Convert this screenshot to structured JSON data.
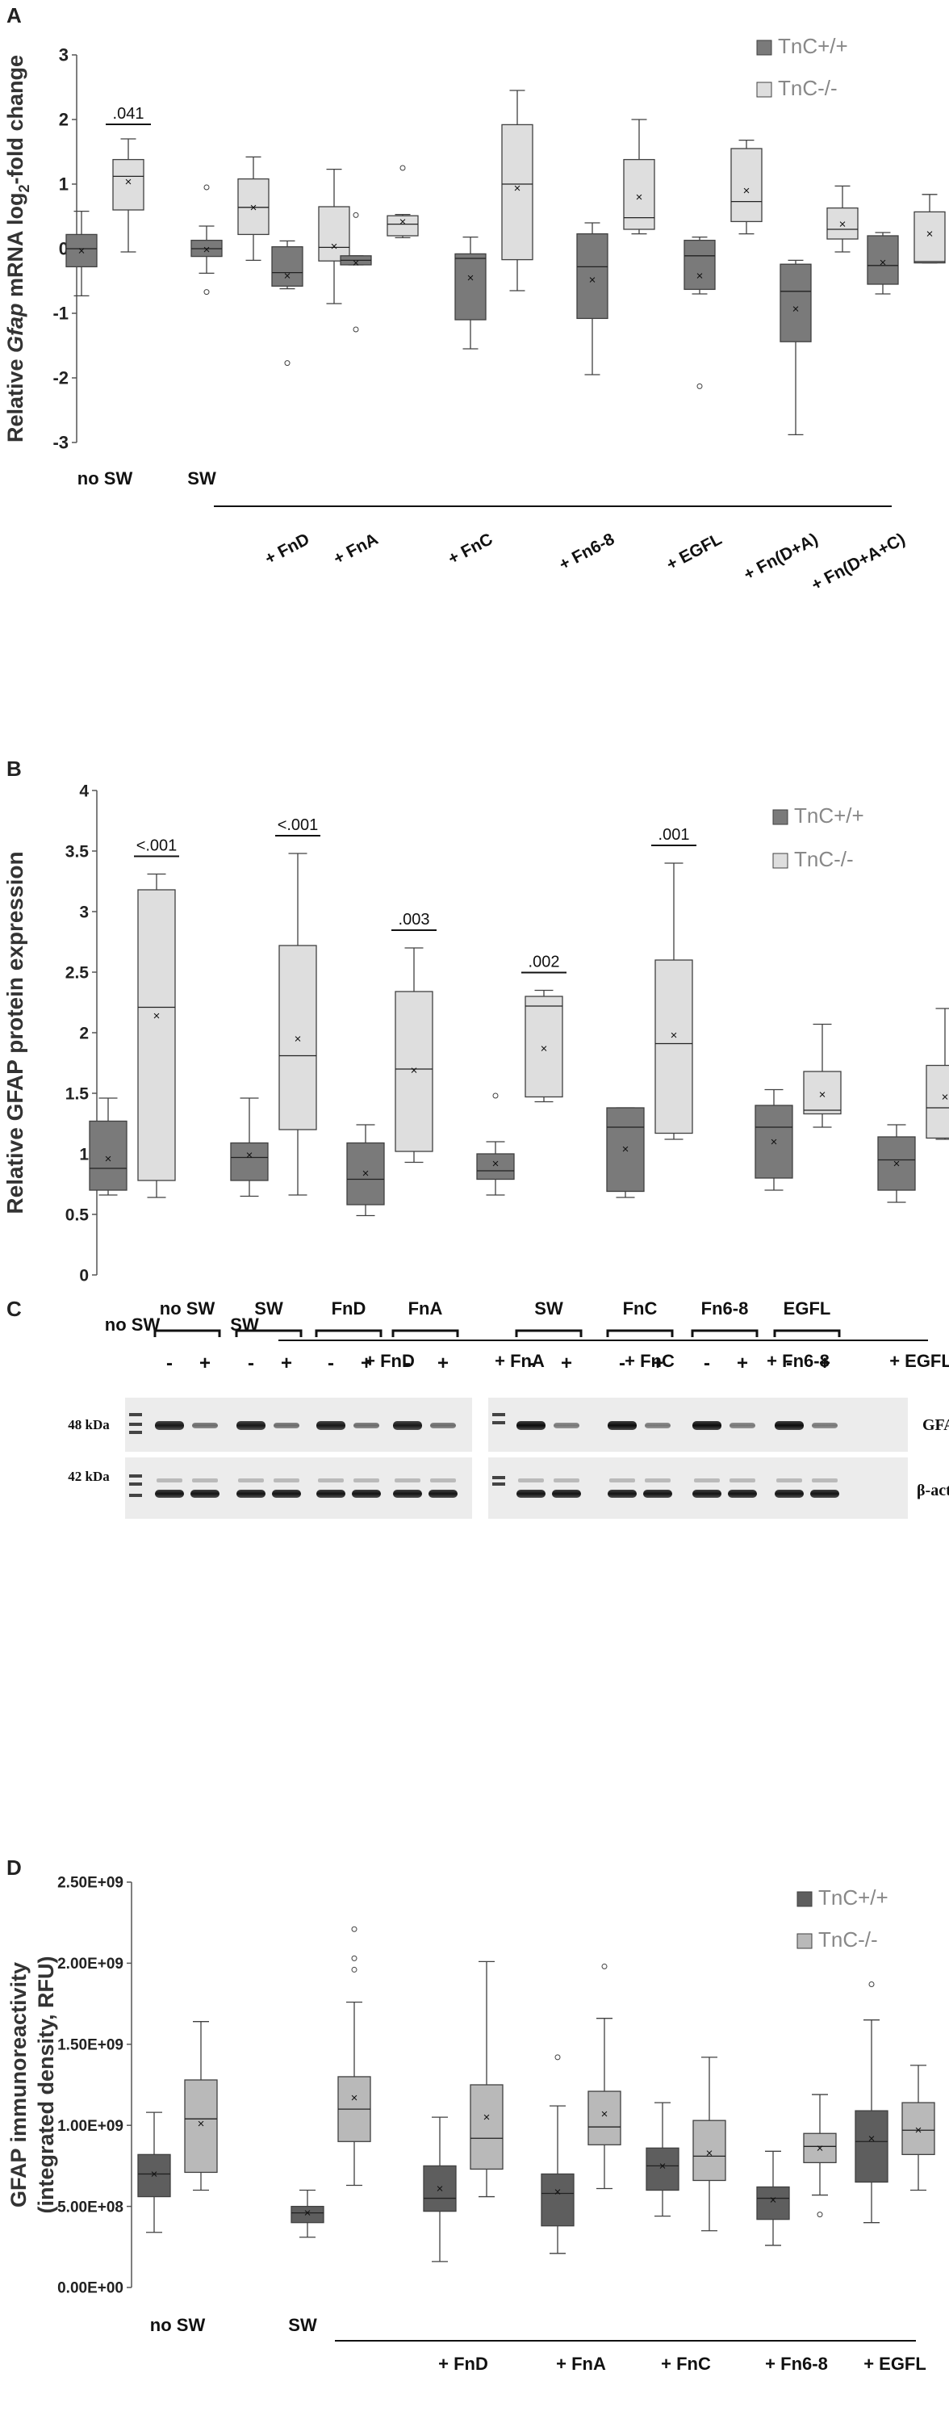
{
  "panels": {
    "a": "A",
    "b": "B",
    "c": "C",
    "d": "D"
  },
  "colors": {
    "wt": "#7a7a7a",
    "ko": "#dedede",
    "wt_d": "#5e5e5e",
    "ko_d": "#b9b9b9",
    "stroke": "#404040",
    "line": "#1a1a1a"
  },
  "chart_data": [
    {
      "id": "A",
      "type": "box",
      "ylabel_pre": "Relative ",
      "ylabel_italic": "Gfap",
      "ylabel_post": " mRNA log",
      "ylabel_sub": "2",
      "ylabel_end": "-fold change",
      "ylim": [
        -3,
        3
      ],
      "yticks": [
        "3",
        "2",
        "1",
        "0",
        "-1",
        "-2",
        "-3"
      ],
      "legend": [
        "TnC+/+",
        "TnC-/-"
      ],
      "no_sw_label": "no SW",
      "sw_label": "SW",
      "groups": [
        "+ FnD",
        "+ FnA",
        "+ FnC",
        "+ Fn6-8",
        "+ EGFL",
        "+ Fn(D+A)",
        "+ Fn(D+A+C)"
      ],
      "pvalues": [
        {
          "text": ".041",
          "group": 0
        }
      ],
      "series": [
        {
          "name": "TnC+/+",
          "boxes": [
            {
              "min": -0.73,
              "q1": -0.28,
              "median": 0.0,
              "q3": 0.22,
              "max": 0.58,
              "mean": -0.03,
              "outliers": []
            },
            {
              "min": -0.38,
              "q1": -0.12,
              "median": 0.0,
              "q3": 0.13,
              "max": 0.35,
              "mean": -0.01,
              "outliers": [
                0.95,
                -0.67
              ]
            },
            {
              "min": -0.62,
              "q1": -0.58,
              "median": -0.37,
              "q3": 0.03,
              "max": 0.12,
              "mean": -0.42,
              "outliers": [
                -1.77
              ]
            },
            {
              "min": -0.25,
              "q1": -0.25,
              "median": -0.18,
              "q3": -0.11,
              "max": -0.11,
              "mean": -0.22,
              "outliers": [
                0.52,
                -1.25
              ]
            },
            {
              "min": -1.55,
              "q1": -1.1,
              "median": -0.15,
              "q3": -0.08,
              "max": 0.18,
              "mean": -0.45,
              "outliers": []
            },
            {
              "min": -1.95,
              "q1": -1.08,
              "median": -0.28,
              "q3": 0.23,
              "max": 0.4,
              "mean": -0.48,
              "outliers": []
            },
            {
              "min": -0.7,
              "q1": -0.63,
              "median": -0.11,
              "q3": 0.13,
              "max": 0.18,
              "mean": -0.42,
              "outliers": [
                -2.13
              ]
            },
            {
              "min": -2.88,
              "q1": -1.44,
              "median": -0.66,
              "q3": -0.24,
              "max": -0.18,
              "mean": -0.93,
              "outliers": []
            },
            {
              "min": -0.7,
              "q1": -0.55,
              "median": -0.26,
              "q3": 0.2,
              "max": 0.25,
              "mean": -0.21,
              "outliers": []
            }
          ]
        },
        {
          "name": "TnC-/-",
          "boxes": [
            {
              "min": -0.05,
              "q1": 0.6,
              "median": 1.12,
              "q3": 1.38,
              "max": 1.7,
              "mean": 1.04,
              "outliers": []
            },
            {
              "min": -0.18,
              "q1": 0.22,
              "median": 0.64,
              "q3": 1.08,
              "max": 1.42,
              "mean": 0.64,
              "outliers": []
            },
            {
              "min": -0.85,
              "q1": -0.19,
              "median": 0.02,
              "q3": 0.65,
              "max": 1.23,
              "mean": 0.04,
              "outliers": []
            },
            {
              "min": 0.17,
              "q1": 0.2,
              "median": 0.38,
              "q3": 0.51,
              "max": 0.53,
              "mean": 0.42,
              "outliers": [
                1.25
              ]
            },
            {
              "min": -0.65,
              "q1": -0.17,
              "median": 1.0,
              "q3": 1.92,
              "max": 2.45,
              "mean": 0.94,
              "outliers": []
            },
            {
              "min": 0.23,
              "q1": 0.3,
              "median": 0.48,
              "q3": 1.38,
              "max": 2.0,
              "mean": 0.8,
              "outliers": []
            },
            {
              "min": 0.23,
              "q1": 0.42,
              "median": 0.73,
              "q3": 1.55,
              "max": 1.68,
              "mean": 0.9,
              "outliers": []
            },
            {
              "min": -0.05,
              "q1": 0.15,
              "median": 0.3,
              "q3": 0.63,
              "max": 0.97,
              "mean": 0.38,
              "outliers": []
            },
            {
              "min": -0.22,
              "q1": -0.22,
              "median": -0.2,
              "q3": 0.57,
              "max": 0.84,
              "mean": 0.23,
              "outliers": []
            }
          ]
        }
      ]
    },
    {
      "id": "B",
      "type": "box",
      "ylabel": "Relative GFAP protein expression",
      "ylim": [
        0,
        4
      ],
      "yticks": [
        "4",
        "3.5",
        "3",
        "2.5",
        "2",
        "1.5",
        "1",
        "0.5",
        "0"
      ],
      "legend": [
        "TnC+/+",
        "TnC-/-"
      ],
      "no_sw_label": "no SW",
      "sw_label": "SW",
      "groups": [
        "+ FnD",
        "+ FnA",
        "+ FnC",
        "+ Fn6-8",
        "+ EGFL"
      ],
      "pvalues": [
        {
          "text": "<.001",
          "group": 0
        },
        {
          "text": "<.001",
          "group": 1
        },
        {
          "text": ".003",
          "group": 2
        },
        {
          "text": ".002",
          "group": 3
        },
        {
          "text": ".001",
          "group": 4
        }
      ],
      "series": [
        {
          "name": "TnC+/+",
          "boxes": [
            {
              "min": 0.66,
              "q1": 0.7,
              "median": 0.88,
              "q3": 1.27,
              "max": 1.46,
              "mean": 0.96,
              "outliers": []
            },
            {
              "min": 0.65,
              "q1": 0.78,
              "median": 0.97,
              "q3": 1.09,
              "max": 1.46,
              "mean": 0.99,
              "outliers": []
            },
            {
              "min": 0.49,
              "q1": 0.58,
              "median": 0.79,
              "q3": 1.09,
              "max": 1.24,
              "mean": 0.84,
              "outliers": []
            },
            {
              "min": 0.66,
              "q1": 0.79,
              "median": 0.86,
              "q3": 1.0,
              "max": 1.1,
              "mean": 0.92,
              "outliers": [
                1.48
              ]
            },
            {
              "min": 0.64,
              "q1": 0.69,
              "median": 1.22,
              "q3": 1.38,
              "max": 1.38,
              "mean": 1.04,
              "outliers": []
            },
            {
              "min": 0.7,
              "q1": 0.8,
              "median": 1.22,
              "q3": 1.4,
              "max": 1.53,
              "mean": 1.1,
              "outliers": []
            },
            {
              "min": 0.6,
              "q1": 0.7,
              "median": 0.95,
              "q3": 1.14,
              "max": 1.24,
              "mean": 0.92,
              "outliers": []
            }
          ]
        },
        {
          "name": "TnC-/-",
          "boxes": [
            {
              "min": 0.64,
              "q1": 0.78,
              "median": 2.21,
              "q3": 3.18,
              "max": 3.31,
              "mean": 2.14,
              "outliers": []
            },
            {
              "min": 0.66,
              "q1": 1.2,
              "median": 1.81,
              "q3": 2.72,
              "max": 3.48,
              "mean": 1.95,
              "outliers": []
            },
            {
              "min": 0.93,
              "q1": 1.02,
              "median": 1.7,
              "q3": 2.34,
              "max": 2.7,
              "mean": 1.69,
              "outliers": []
            },
            {
              "min": 1.43,
              "q1": 1.47,
              "median": 2.22,
              "q3": 2.3,
              "max": 2.35,
              "mean": 1.87,
              "outliers": []
            },
            {
              "min": 1.12,
              "q1": 1.17,
              "median": 1.91,
              "q3": 2.6,
              "max": 3.4,
              "mean": 1.98,
              "outliers": []
            },
            {
              "min": 1.22,
              "q1": 1.33,
              "median": 1.36,
              "q3": 1.68,
              "max": 2.07,
              "mean": 1.49,
              "outliers": []
            },
            {
              "min": 1.12,
              "q1": 1.13,
              "median": 1.38,
              "q3": 1.73,
              "max": 2.2,
              "mean": 1.47,
              "outliers": []
            }
          ]
        }
      ]
    },
    {
      "id": "D",
      "type": "box",
      "ylabel_line1": "GFAP immunoreactivity",
      "ylabel_line2": "(integrated density, RFU)",
      "ylim": [
        0,
        2500000000
      ],
      "yticks": [
        "2.50E+09",
        "2.00E+09",
        "1.50E+09",
        "1.00E+09",
        "5.00E+08",
        "0.00E+00"
      ],
      "legend": [
        "TnC+/+",
        "TnC-/-"
      ],
      "no_sw_label": "no SW",
      "sw_label": "SW",
      "groups": [
        "+ FnD",
        "+ FnA",
        "+ FnC",
        "+ Fn6-8",
        "+ EGFL"
      ],
      "pvalues": [],
      "series": [
        {
          "name": "TnC+/+",
          "boxes": [
            {
              "min": 340000000,
              "q1": 560000000,
              "median": 700000000,
              "q3": 820000000,
              "max": 1080000000,
              "mean": 700000000,
              "outliers": []
            },
            {
              "min": 310000000,
              "q1": 400000000,
              "median": 460000000,
              "q3": 500000000,
              "max": 600000000,
              "mean": 460000000,
              "outliers": []
            },
            {
              "min": 160000000,
              "q1": 470000000,
              "median": 550000000,
              "q3": 750000000,
              "max": 1050000000,
              "mean": 610000000,
              "outliers": []
            },
            {
              "min": 210000000,
              "q1": 380000000,
              "median": 580000000,
              "q3": 700000000,
              "max": 1120000000,
              "mean": 590000000,
              "outliers": [
                1420000000
              ]
            },
            {
              "min": 440000000,
              "q1": 600000000,
              "median": 750000000,
              "q3": 860000000,
              "max": 1140000000,
              "mean": 750000000,
              "outliers": []
            },
            {
              "min": 260000000,
              "q1": 420000000,
              "median": 550000000,
              "q3": 620000000,
              "max": 840000000,
              "mean": 540000000,
              "outliers": []
            },
            {
              "min": 400000000,
              "q1": 650000000,
              "median": 900000000,
              "q3": 1090000000,
              "max": 1650000000,
              "mean": 920000000,
              "outliers": [
                1870000000
              ]
            }
          ]
        },
        {
          "name": "TnC-/-",
          "boxes": [
            {
              "min": 600000000,
              "q1": 710000000,
              "median": 1040000000,
              "q3": 1280000000,
              "max": 1640000000,
              "mean": 1010000000,
              "outliers": []
            },
            {
              "min": 630000000,
              "q1": 900000000,
              "median": 1100000000,
              "q3": 1300000000,
              "max": 1760000000,
              "mean": 1170000000,
              "outliers": [
                1960000000,
                2030000000,
                2210000000
              ]
            },
            {
              "min": 560000000,
              "q1": 730000000,
              "median": 920000000,
              "q3": 1250000000,
              "max": 2010000000,
              "mean": 1050000000,
              "outliers": []
            },
            {
              "min": 610000000,
              "q1": 880000000,
              "median": 990000000,
              "q3": 1210000000,
              "max": 1660000000,
              "mean": 1070000000,
              "outliers": [
                1980000000
              ]
            },
            {
              "min": 350000000,
              "q1": 660000000,
              "median": 810000000,
              "q3": 1030000000,
              "max": 1420000000,
              "mean": 830000000,
              "outliers": []
            },
            {
              "min": 570000000,
              "q1": 770000000,
              "median": 870000000,
              "q3": 950000000,
              "max": 1190000000,
              "mean": 860000000,
              "outliers": [
                450000000
              ]
            },
            {
              "min": 600000000,
              "q1": 820000000,
              "median": 970000000,
              "q3": 1140000000,
              "max": 1370000000,
              "mean": 970000000,
              "outliers": []
            }
          ]
        }
      ]
    }
  ],
  "blot": {
    "left_lanes": [
      "no SW",
      "SW",
      "FnD",
      "FnA"
    ],
    "right_lanes": [
      "SW",
      "FnC",
      "Fn6-8",
      "EGFL"
    ],
    "minus": "-",
    "plus": "+",
    "kda_gfap": "48 kDa",
    "kda_actin": "42 kDa",
    "label_gfap": "GFAP",
    "label_actin": "β-actin"
  }
}
